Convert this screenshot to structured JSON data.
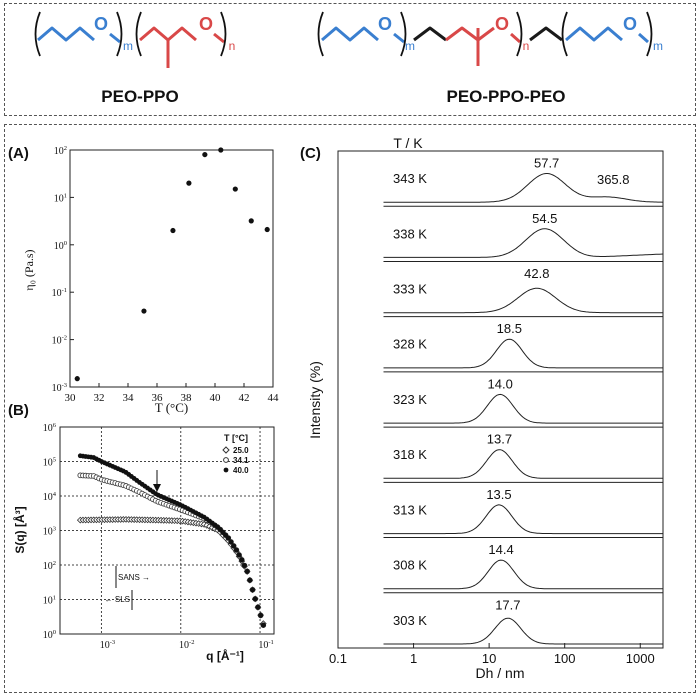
{
  "top_panel": {
    "molecules": [
      {
        "label": "PEO-PPO",
        "blocks": [
          "PEO",
          "PPO"
        ],
        "subscripts": [
          "m",
          "n"
        ]
      },
      {
        "label": "PEO-PPO-PEO",
        "blocks": [
          "PEO",
          "PPO",
          "PEO"
        ],
        "subscripts": [
          "m",
          "n",
          "m"
        ]
      }
    ],
    "atom": "O"
  },
  "colors": {
    "peo": "#3a7fd0",
    "ppo": "#d94848",
    "linker": "#1a1a1a",
    "axis": "#222222"
  },
  "chart_data": [
    {
      "panel": "(A)",
      "type": "scatter",
      "xlabel": "T (°C)",
      "ylabel": "η₀ (Pa.s)",
      "xlim": [
        30,
        44
      ],
      "ylim_log10": [
        -3,
        2
      ],
      "y_scale": "log",
      "x_ticks": [
        "30",
        "32",
        "34",
        "36",
        "38",
        "40",
        "42",
        "44"
      ],
      "y_ticks": [
        {
          "base": "10",
          "exp": "-3"
        },
        {
          "base": "10",
          "exp": "-2"
        },
        {
          "base": "10",
          "exp": "-1"
        },
        {
          "base": "10",
          "exp": "0"
        },
        {
          "base": "10",
          "exp": "1"
        },
        {
          "base": "10",
          "exp": "2"
        }
      ],
      "points": [
        {
          "x": 30.5,
          "y": 0.0015
        },
        {
          "x": 35.1,
          "y": 0.04
        },
        {
          "x": 37.1,
          "y": 2.0
        },
        {
          "x": 38.2,
          "y": 20
        },
        {
          "x": 39.3,
          "y": 80
        },
        {
          "x": 40.4,
          "y": 100
        },
        {
          "x": 41.4,
          "y": 15
        },
        {
          "x": 42.5,
          "y": 3.2
        },
        {
          "x": 43.6,
          "y": 2.1
        }
      ]
    },
    {
      "panel": "(B)",
      "type": "scatter",
      "xlabel": "q [Å⁻¹]",
      "ylabel": "S(q) [Å³]",
      "x_scale": "log",
      "y_scale": "log",
      "xlim": [
        0.0003,
        0.15
      ],
      "ylim": [
        1,
        1000000
      ],
      "grid": true,
      "x_ticks": [
        {
          "base": "10",
          "exp": "-3"
        },
        {
          "base": "10",
          "exp": "-2"
        },
        {
          "base": "10",
          "exp": "-1"
        }
      ],
      "y_ticks": [
        {
          "base": "10",
          "exp": "0"
        },
        {
          "base": "10",
          "exp": "1"
        },
        {
          "base": "10",
          "exp": "2"
        },
        {
          "base": "10",
          "exp": "3"
        },
        {
          "base": "10",
          "exp": "4"
        },
        {
          "base": "10",
          "exp": "5"
        },
        {
          "base": "10",
          "exp": "6"
        }
      ],
      "legend_title": "T [°C]",
      "legend_placement": "top-right",
      "annotations": [
        "SANS",
        "SLS"
      ],
      "series": [
        {
          "name": "25.0",
          "marker": "diamond-open",
          "points": [
            [
              0.0005,
              2000
            ],
            [
              0.001,
              2050
            ],
            [
              0.002,
              2100
            ],
            [
              0.005,
              2000
            ],
            [
              0.01,
              1900
            ],
            [
              0.02,
              1500
            ],
            [
              0.03,
              1000
            ],
            [
              0.04,
              500
            ],
            [
              0.05,
              250
            ],
            [
              0.06,
              120
            ],
            [
              0.07,
              60
            ],
            [
              0.08,
              20
            ],
            [
              0.09,
              8
            ],
            [
              0.1,
              4
            ],
            [
              0.11,
              2
            ]
          ]
        },
        {
          "name": "34.1",
          "marker": "circle-open",
          "points": [
            [
              0.0005,
              40000
            ],
            [
              0.0008,
              38000
            ],
            [
              0.001,
              30000
            ],
            [
              0.002,
              20000
            ],
            [
              0.003,
              13000
            ],
            [
              0.005,
              7000
            ],
            [
              0.01,
              4000
            ],
            [
              0.02,
              2200
            ],
            [
              0.03,
              1200
            ],
            [
              0.04,
              600
            ],
            [
              0.05,
              280
            ],
            [
              0.06,
              130
            ],
            [
              0.07,
              60
            ],
            [
              0.08,
              20
            ],
            [
              0.09,
              8
            ],
            [
              0.1,
              4
            ],
            [
              0.11,
              1.8
            ]
          ]
        },
        {
          "name": "40.0",
          "marker": "circle-filled",
          "points": [
            [
              0.0005,
              150000
            ],
            [
              0.0008,
              130000
            ],
            [
              0.001,
              100000
            ],
            [
              0.002,
              50000
            ],
            [
              0.003,
              25000
            ],
            [
              0.005,
              11000
            ],
            [
              0.01,
              5500
            ],
            [
              0.02,
              2400
            ],
            [
              0.03,
              1200
            ],
            [
              0.04,
              600
            ],
            [
              0.05,
              280
            ],
            [
              0.06,
              130
            ],
            [
              0.07,
              60
            ],
            [
              0.08,
              20
            ],
            [
              0.09,
              8
            ],
            [
              0.1,
              4
            ],
            [
              0.11,
              1.8
            ]
          ]
        }
      ]
    },
    {
      "panel": "(C)",
      "type": "line",
      "xlabel": "Dh / nm",
      "ylabel": "Intensity (%)",
      "x_scale": "log",
      "xlim": [
        0.1,
        2000
      ],
      "x_ticks": [
        "0.1",
        "1",
        "10",
        "100",
        "1000"
      ],
      "header": "T / K",
      "series": [
        {
          "name": "343 K",
          "peaks": [
            {
              "x": 57.7,
              "label": "57.7",
              "h": 1.0
            },
            {
              "x": 365.8,
              "label": "365.8",
              "h": 0.18
            }
          ]
        },
        {
          "name": "338 K",
          "peaks": [
            {
              "x": 54.5,
              "label": "54.5",
              "h": 1.0
            }
          ],
          "tail": true
        },
        {
          "name": "333 K",
          "peaks": [
            {
              "x": 42.8,
              "label": "42.8",
              "h": 0.85
            }
          ]
        },
        {
          "name": "328 K",
          "peaks": [
            {
              "x": 18.5,
              "label": "18.5",
              "h": 1.0
            }
          ]
        },
        {
          "name": "323 K",
          "peaks": [
            {
              "x": 14.0,
              "label": "14.0",
              "h": 1.0
            }
          ]
        },
        {
          "name": "318 K",
          "peaks": [
            {
              "x": 13.7,
              "label": "13.7",
              "h": 1.0
            }
          ]
        },
        {
          "name": "313 K",
          "peaks": [
            {
              "x": 13.5,
              "label": "13.5",
              "h": 1.0
            }
          ]
        },
        {
          "name": "308 K",
          "peaks": [
            {
              "x": 14.4,
              "label": "14.4",
              "h": 1.0
            }
          ]
        },
        {
          "name": "303 K",
          "peaks": [
            {
              "x": 17.7,
              "label": "17.7",
              "h": 0.9
            }
          ]
        }
      ]
    }
  ]
}
